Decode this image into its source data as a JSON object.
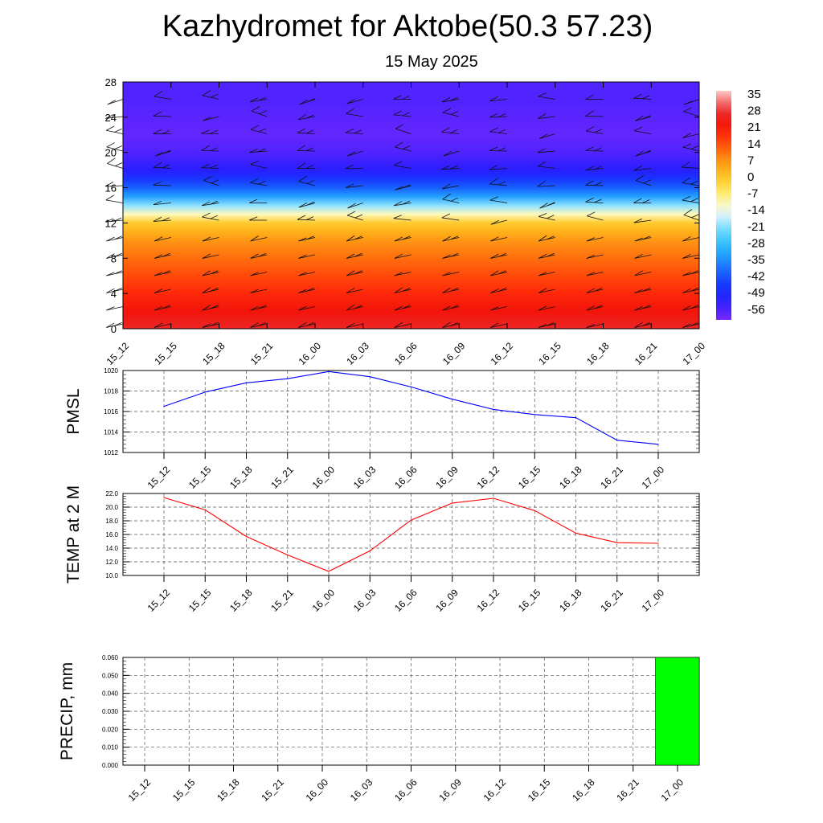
{
  "title": "Kazhydromet for Aktobe(50.3 57.23)",
  "subtitle": "15 May 2025",
  "chart_data": [
    {
      "type": "heatmap",
      "title": "",
      "xlabel": "",
      "ylabel": "",
      "categories": [
        "15_12",
        "15_15",
        "15_18",
        "15_21",
        "16_00",
        "16_03",
        "16_06",
        "16_09",
        "16_12",
        "16_15",
        "16_18",
        "16_21",
        "17_00"
      ],
      "ylim": [
        0,
        28
      ],
      "yticks": [
        "0",
        "4",
        "8",
        "12",
        "16",
        "20",
        "24",
        "28"
      ],
      "colorbar_labels": [
        "35",
        "28",
        "21",
        "14",
        "7",
        "0",
        "-7",
        "-14",
        "-21",
        "-28",
        "-35",
        "-42",
        "-49",
        "-56"
      ],
      "colorbar_range": [
        -60,
        38
      ],
      "approx_temperature_profile": {
        "levels": [
          0,
          2,
          4,
          6,
          8,
          10,
          11,
          12,
          13,
          14,
          15,
          16,
          17,
          18,
          20,
          22,
          24,
          26,
          28
        ],
        "values": [
          28,
          24,
          20,
          16,
          12,
          8,
          4,
          0,
          -10,
          -20,
          -32,
          -40,
          -46,
          -52,
          -56,
          -58,
          -57,
          -56,
          -56
        ]
      },
      "overlay": "wind barbs"
    },
    {
      "type": "line",
      "ylabel": "PMSL",
      "ylim": [
        1012,
        1020
      ],
      "yticks": [
        "1012",
        "1014",
        "1016",
        "1018",
        "1020"
      ],
      "categories": [
        "15_12",
        "15_15",
        "15_18",
        "15_21",
        "16_00",
        "16_03",
        "16_06",
        "16_09",
        "16_12",
        "16_15",
        "16_18",
        "16_21",
        "17_00"
      ],
      "values": [
        1016.5,
        1017.9,
        1018.8,
        1019.2,
        1019.9,
        1019.4,
        1018.4,
        1017.2,
        1016.2,
        1015.7,
        1015.4,
        1013.2,
        1012.8
      ],
      "color": "#0000ff",
      "grid": true
    },
    {
      "type": "line",
      "ylabel": "TEMP at 2 M",
      "ylim": [
        10,
        22
      ],
      "yticks": [
        "10.0",
        "12.0",
        "14.0",
        "16.0",
        "18.0",
        "20.0",
        "22.0"
      ],
      "categories": [
        "15_12",
        "15_15",
        "15_18",
        "15_21",
        "16_00",
        "16_03",
        "16_06",
        "16_09",
        "16_12",
        "16_15",
        "16_18",
        "16_21",
        "17_00"
      ],
      "values": [
        21.4,
        19.6,
        15.7,
        13.0,
        10.6,
        13.6,
        18.1,
        20.6,
        21.3,
        19.5,
        16.2,
        14.8,
        14.7
      ],
      "color": "#ff0000",
      "grid": true
    },
    {
      "type": "bar",
      "ylabel": "PRECIP, mm",
      "ylim": [
        0,
        0.06
      ],
      "yticks": [
        "0.000",
        "0.010",
        "0.020",
        "0.030",
        "0.040",
        "0.050",
        "0.060"
      ],
      "categories": [
        "15_12",
        "15_15",
        "15_18",
        "15_21",
        "16_00",
        "16_03",
        "16_06",
        "16_09",
        "16_12",
        "16_15",
        "16_18",
        "16_21",
        "17_00"
      ],
      "values": [
        0,
        0,
        0,
        0,
        0,
        0,
        0,
        0,
        0,
        0,
        0,
        0,
        0.06
      ],
      "color": "#00ff00",
      "grid": true
    }
  ]
}
